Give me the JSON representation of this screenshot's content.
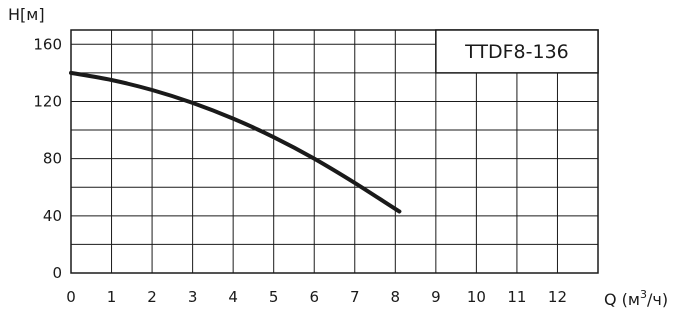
{
  "chart_data": {
    "type": "line",
    "ylabel_prefix": "H",
    "ylabel_unit": "[м]",
    "xlabel_prefix": "Q (м",
    "xlabel_sup": "3",
    "xlabel_suffix": "/ч)",
    "xlim": [
      0,
      13
    ],
    "ylim": [
      0,
      170
    ],
    "x_ticks": [
      "0",
      "1",
      "2",
      "3",
      "4",
      "5",
      "6",
      "7",
      "8",
      "9",
      "10",
      "11",
      "12"
    ],
    "y_ticks": [
      {
        "label": "0",
        "value": 0
      },
      {
        "label": "40",
        "value": 40
      },
      {
        "label": "80",
        "value": 80
      },
      {
        "label": "120",
        "value": 120
      },
      {
        "label": "160",
        "value": 160
      }
    ],
    "grid": true,
    "legend_box": "TTDF8-136",
    "series": [
      {
        "x": [
          0,
          1,
          2,
          3,
          4,
          5,
          6,
          7,
          8.1
        ],
        "y": [
          140,
          135,
          128,
          119,
          108,
          95,
          80,
          63,
          43
        ]
      }
    ],
    "line_color": "#1a1a1a"
  }
}
